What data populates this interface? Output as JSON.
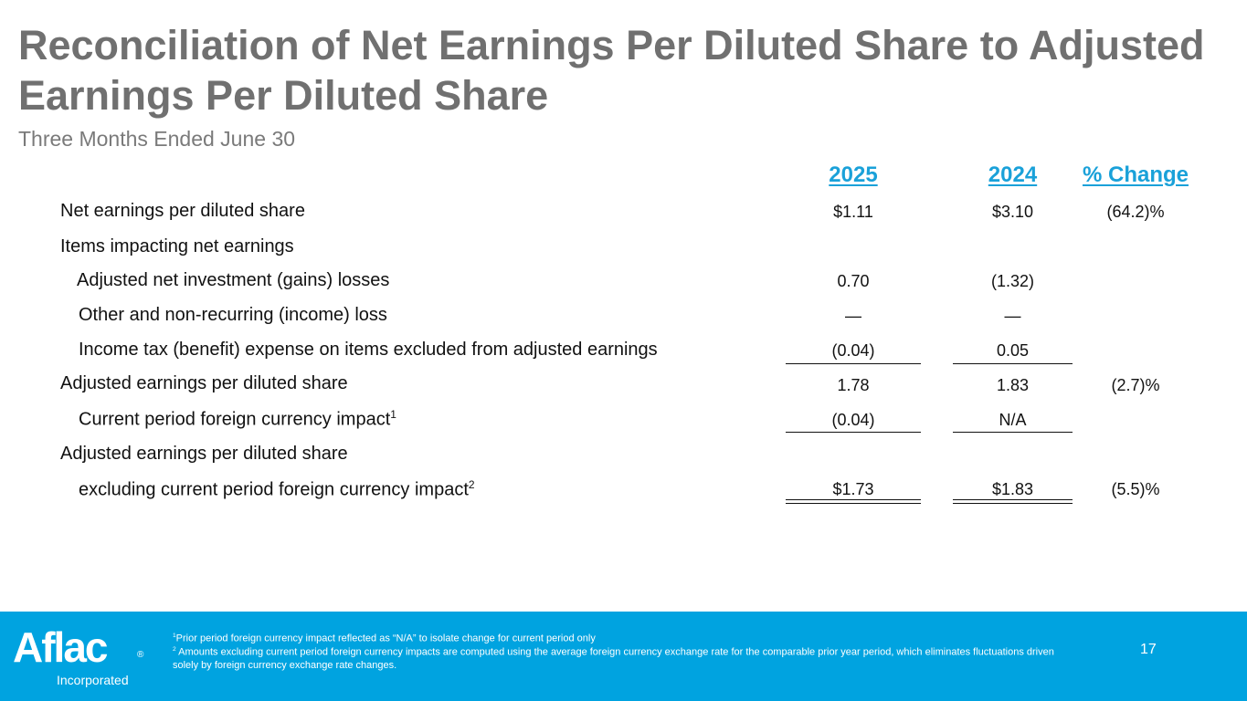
{
  "title": "Reconciliation of Net Earnings Per Diluted Share to Adjusted Earnings Per Diluted Share",
  "subtitle": "Three Months Ended June 30",
  "headers": {
    "y2025": "2025",
    "y2024": "2024",
    "pct": "% Change"
  },
  "rows": [
    {
      "label": "Net earnings per diluted share",
      "v2025": "$1.11",
      "v2024": "$3.10",
      "pct": "(64.2)%"
    },
    {
      "label": "Items impacting net earnings",
      "v2025": "",
      "v2024": "",
      "pct": ""
    },
    {
      "label": "Adjusted net investment (gains) losses",
      "v2025": "0.70",
      "v2024": "(1.32)",
      "pct": ""
    },
    {
      "label": "Other and non-recurring (income) loss",
      "v2025": "—",
      "v2024": "—",
      "pct": ""
    },
    {
      "label": "Income tax (benefit) expense on items excluded from adjusted earnings",
      "v2025": "(0.04)",
      "v2024": "0.05",
      "pct": ""
    },
    {
      "label": "Adjusted earnings per diluted share",
      "v2025": "1.78",
      "v2024": "1.83",
      "pct": "(2.7)%"
    },
    {
      "label": "Current period foreign currency impact",
      "sup": "1",
      "v2025": "(0.04)",
      "v2024": "N/A",
      "pct": ""
    },
    {
      "label": "Adjusted earnings per diluted share",
      "v2025": "",
      "v2024": "",
      "pct": ""
    },
    {
      "label": "excluding current period foreign currency impact",
      "sup": "2",
      "v2025": "$1.73",
      "v2024": "$1.83",
      "pct": "(5.5)%"
    }
  ],
  "footer": {
    "logo_text": "Aflac",
    "logo_reg": "®",
    "logo_sub": "Incorporated",
    "note1_sup": "1",
    "note1": "Prior period foreign currency impact reflected as “N/A” to isolate change for current period only",
    "note2_sup": "2",
    "note2": " Amounts excluding current period foreign currency impacts are computed using the average foreign currency exchange rate for the comparable prior year period, which eliminates fluctuations driven solely by foreign currency exchange rate changes.",
    "page_number": "17"
  },
  "colors": {
    "accent": "#1aa1d9",
    "footer_bg": "#00a3e0",
    "title": "#707070"
  }
}
